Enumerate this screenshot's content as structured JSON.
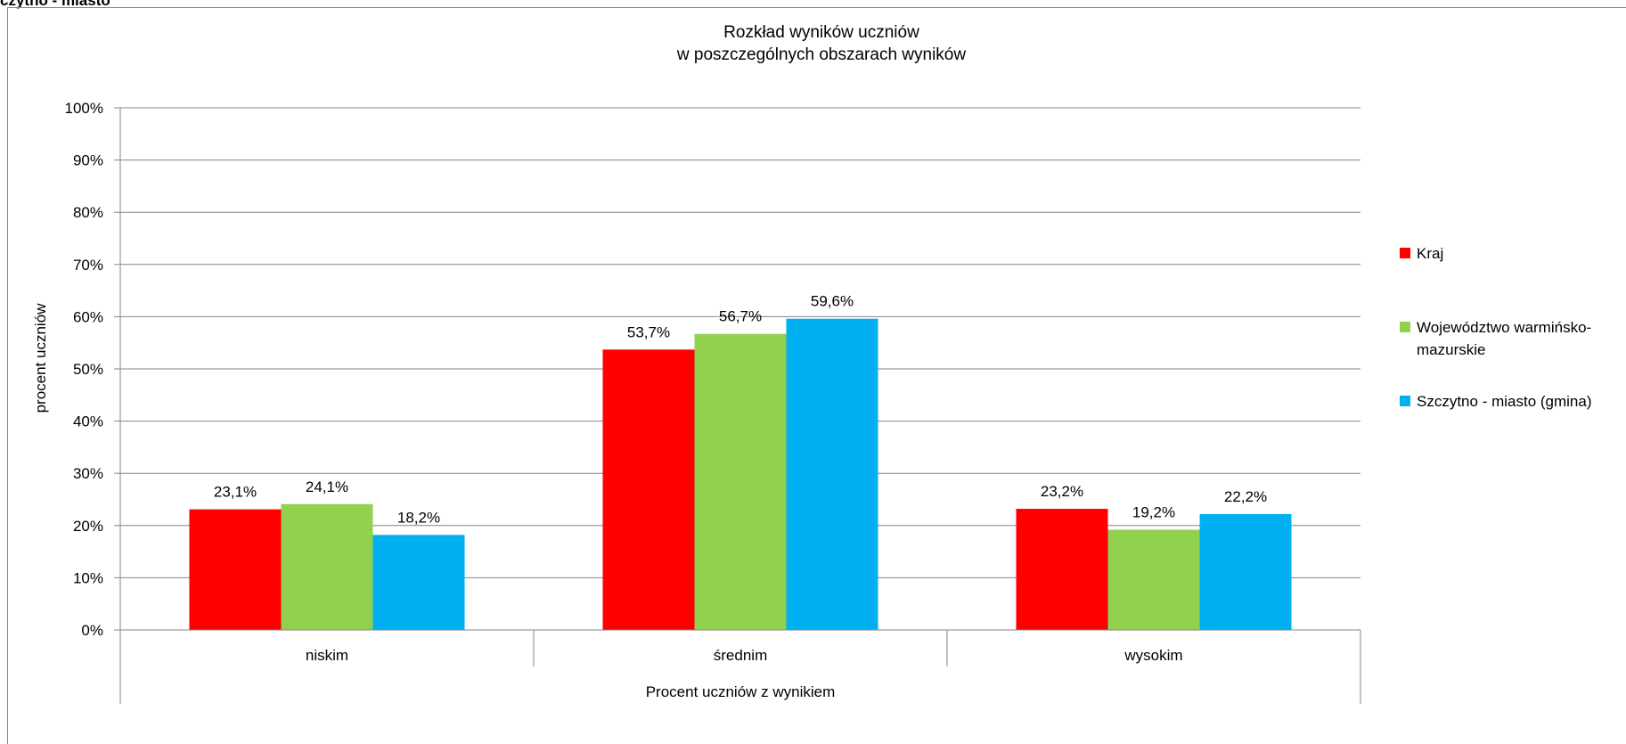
{
  "header_text": "czytno - miasto",
  "chart_data": {
    "type": "bar",
    "title": "Rozkład wyników uczniów",
    "subtitle": "w poszczególnych obszarach wyników",
    "xlabel": "Procent uczniów z wynikiem",
    "ylabel": "procent uczniów",
    "categories": [
      "niskim",
      "średnim",
      "wysokim"
    ],
    "ylim": [
      0,
      100
    ],
    "yticks": [
      "0%",
      "10%",
      "20%",
      "30%",
      "40%",
      "50%",
      "60%",
      "70%",
      "80%",
      "90%",
      "100%"
    ],
    "grid": true,
    "legend_position": "right",
    "series": [
      {
        "name": "Kraj",
        "color": "#ff0000",
        "values": [
          23.1,
          53.7,
          23.2
        ],
        "labels": [
          "23,1%",
          "53,7%",
          "23,2%"
        ]
      },
      {
        "name": "Województwo warmińsko-mazurskie",
        "legend_lines": [
          "Województwo warmińsko-",
          "mazurskie"
        ],
        "color": "#92d050",
        "values": [
          24.1,
          56.7,
          19.2
        ],
        "labels": [
          "24,1%",
          "56,7%",
          "19,2%"
        ]
      },
      {
        "name": "Szczytno - miasto (gmina)",
        "color": "#00b0f0",
        "values": [
          18.2,
          59.6,
          22.2
        ],
        "labels": [
          "18,2%",
          "59,6%",
          "22,2%"
        ]
      }
    ]
  }
}
